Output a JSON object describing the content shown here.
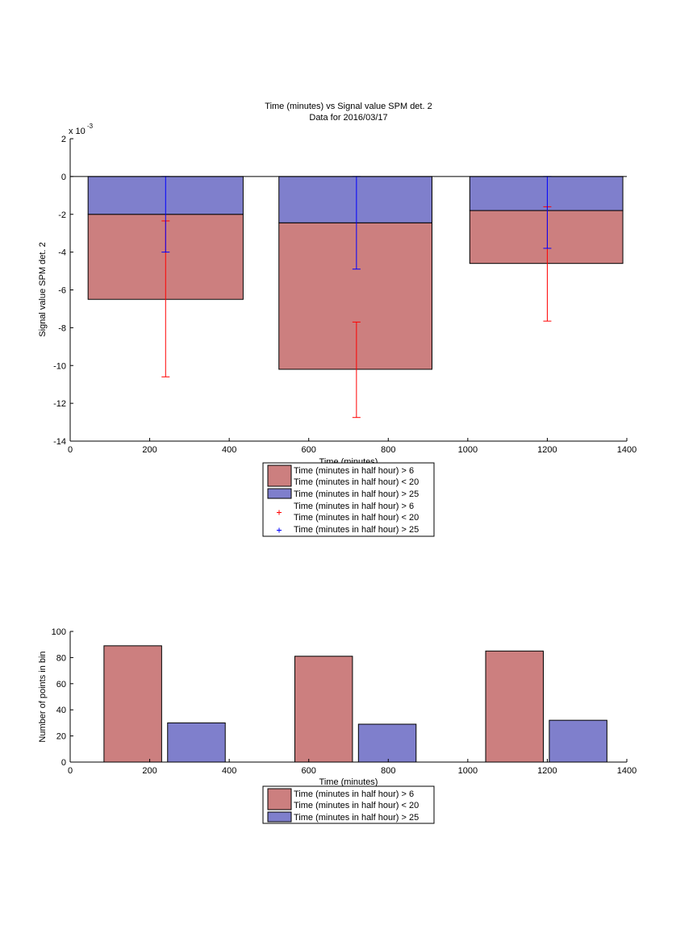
{
  "colors": {
    "red_bar": "#cc7f7f",
    "blue_bar": "#7f7fcc",
    "red_err": "#ff0000",
    "blue_err": "#0000ff",
    "axis": "#000000"
  },
  "chart_data": [
    {
      "type": "bar",
      "subtype": "stacked",
      "title": "Time (minutes) vs Signal value SPM det. 2",
      "subtitle": "Data for 2016/03/17",
      "xlabel": "Time (minutes)",
      "ylabel": "Signal value SPM det. 2",
      "y_exponent_label": "x 10",
      "y_exponent_power": "-3",
      "xlim": [
        0,
        1400
      ],
      "ylim": [
        -14,
        2
      ],
      "grid": false,
      "legend_position": "bottom-center",
      "x_ticks": [
        0,
        200,
        400,
        600,
        800,
        1000,
        1200,
        1400
      ],
      "y_ticks": [
        2,
        0,
        -2,
        -4,
        -6,
        -8,
        -10,
        -12,
        -14
      ],
      "bars": [
        {
          "x_start": 45,
          "x_end": 435,
          "lower_value": -6.5,
          "upper_value": -2.0
        },
        {
          "x_start": 525,
          "x_end": 910,
          "lower_value": -10.2,
          "upper_value": -2.45
        },
        {
          "x_start": 1005,
          "x_end": 1390,
          "lower_value": -4.6,
          "upper_value": -1.8
        }
      ],
      "series": [
        {
          "name": "Time (minutes in half hour) > 6\nTime (minutes in half hour) < 20",
          "key": "red",
          "values": [
            -6.5,
            -10.2,
            -4.6
          ]
        },
        {
          "name": "Time (minutes in half hour) > 25",
          "key": "blue",
          "values": [
            -2.0,
            -2.45,
            -1.8
          ]
        }
      ],
      "error_bars": [
        {
          "name": "Time (minutes in half hour) > 6\nTime (minutes in half hour) < 20",
          "key": "red",
          "x": [
            240,
            720,
            1200
          ],
          "low": [
            -10.6,
            -12.75,
            -7.65
          ],
          "high": [
            -2.35,
            -7.7,
            -1.6
          ]
        },
        {
          "name": "Time (minutes in half hour) > 25",
          "key": "blue",
          "x": [
            240,
            720,
            1200
          ],
          "low": [
            -4.0,
            -4.9,
            -3.8
          ],
          "high": [
            0.0,
            0.0,
            0.0
          ]
        }
      ],
      "legend": [
        {
          "kind": "patch",
          "key": "red",
          "lines": [
            "Time (minutes in half hour) > 6",
            "Time (minutes in half hour) < 20"
          ]
        },
        {
          "kind": "patch",
          "key": "blue",
          "lines": [
            "Time (minutes in half hour) > 25"
          ]
        },
        {
          "kind": "marker",
          "key": "red",
          "lines": [
            "Time (minutes in half hour) > 6",
            "Time (minutes in half hour) < 20"
          ]
        },
        {
          "kind": "marker",
          "key": "blue",
          "lines": [
            "Time (minutes in half hour) > 25"
          ]
        }
      ]
    },
    {
      "type": "bar",
      "subtype": "grouped",
      "title": "",
      "xlabel": "Time (minutes)",
      "ylabel": "Number of points in bin",
      "xlim": [
        0,
        1400
      ],
      "ylim": [
        0,
        100
      ],
      "grid": false,
      "legend_position": "bottom-center",
      "x_ticks": [
        0,
        200,
        400,
        600,
        800,
        1000,
        1200,
        1400
      ],
      "y_ticks": [
        0,
        20,
        40,
        60,
        80,
        100
      ],
      "bars": [
        {
          "key": "red",
          "x_start": 85,
          "x_end": 230,
          "value": 89
        },
        {
          "key": "blue",
          "x_start": 245,
          "x_end": 390,
          "value": 30
        },
        {
          "key": "red",
          "x_start": 565,
          "x_end": 710,
          "value": 81
        },
        {
          "key": "blue",
          "x_start": 725,
          "x_end": 870,
          "value": 29
        },
        {
          "key": "red",
          "x_start": 1045,
          "x_end": 1190,
          "value": 85
        },
        {
          "key": "blue",
          "x_start": 1205,
          "x_end": 1350,
          "value": 32
        }
      ],
      "series": [
        {
          "name": "Time (minutes in half hour) > 6\nTime (minutes in half hour) < 20",
          "key": "red",
          "values": [
            89,
            81,
            85
          ]
        },
        {
          "name": "Time (minutes in half hour) > 25",
          "key": "blue",
          "values": [
            30,
            29,
            32
          ]
        }
      ],
      "legend": [
        {
          "kind": "patch",
          "key": "red",
          "lines": [
            "Time (minutes in half hour) > 6",
            "Time (minutes in half hour) < 20"
          ]
        },
        {
          "kind": "patch",
          "key": "blue",
          "lines": [
            "Time (minutes in half hour) > 25"
          ]
        }
      ]
    }
  ]
}
